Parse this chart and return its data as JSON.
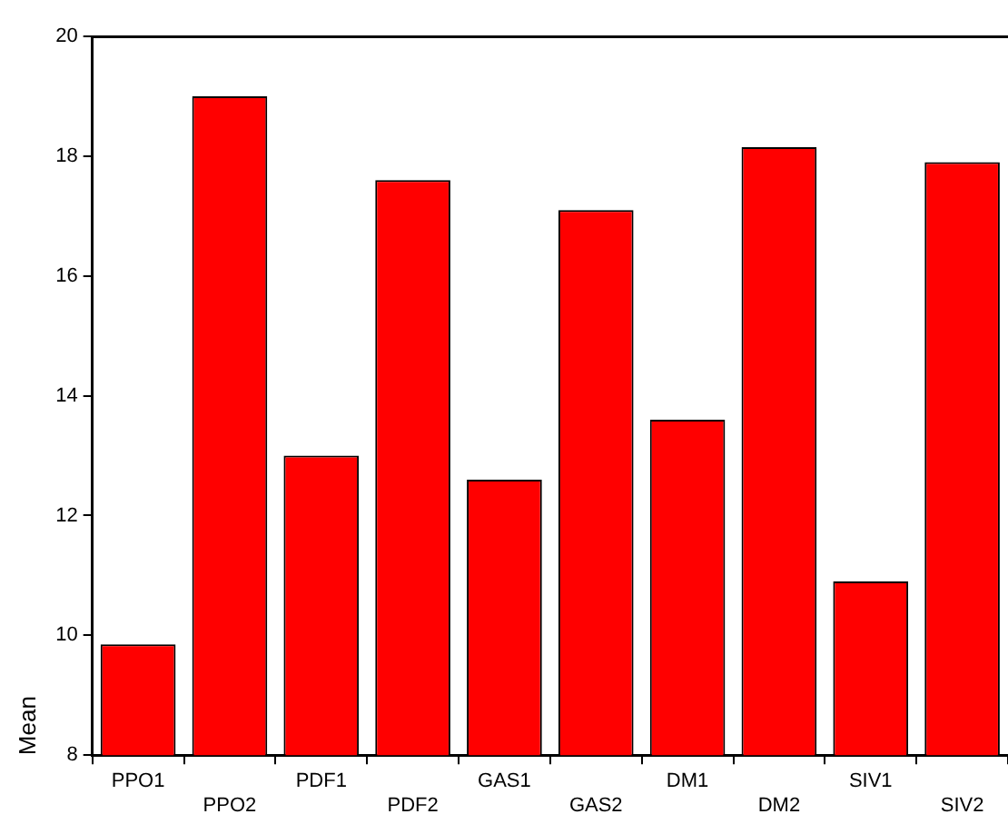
{
  "chart_data": {
    "type": "bar",
    "ylabel": "Mean",
    "categories": [
      "PPO1",
      "PPO2",
      "PDF1",
      "PDF2",
      "GAS1",
      "GAS2",
      "DM1",
      "DM2",
      "SIV1",
      "SIV2"
    ],
    "values": [
      9.85,
      19.0,
      13.0,
      17.6,
      12.6,
      17.1,
      13.6,
      18.15,
      10.9,
      17.9
    ],
    "color": "#ff0000",
    "ylim": [
      8,
      20
    ],
    "yticks": [
      8,
      10,
      12,
      14,
      16,
      18,
      20
    ],
    "grid": false,
    "legend": false
  }
}
